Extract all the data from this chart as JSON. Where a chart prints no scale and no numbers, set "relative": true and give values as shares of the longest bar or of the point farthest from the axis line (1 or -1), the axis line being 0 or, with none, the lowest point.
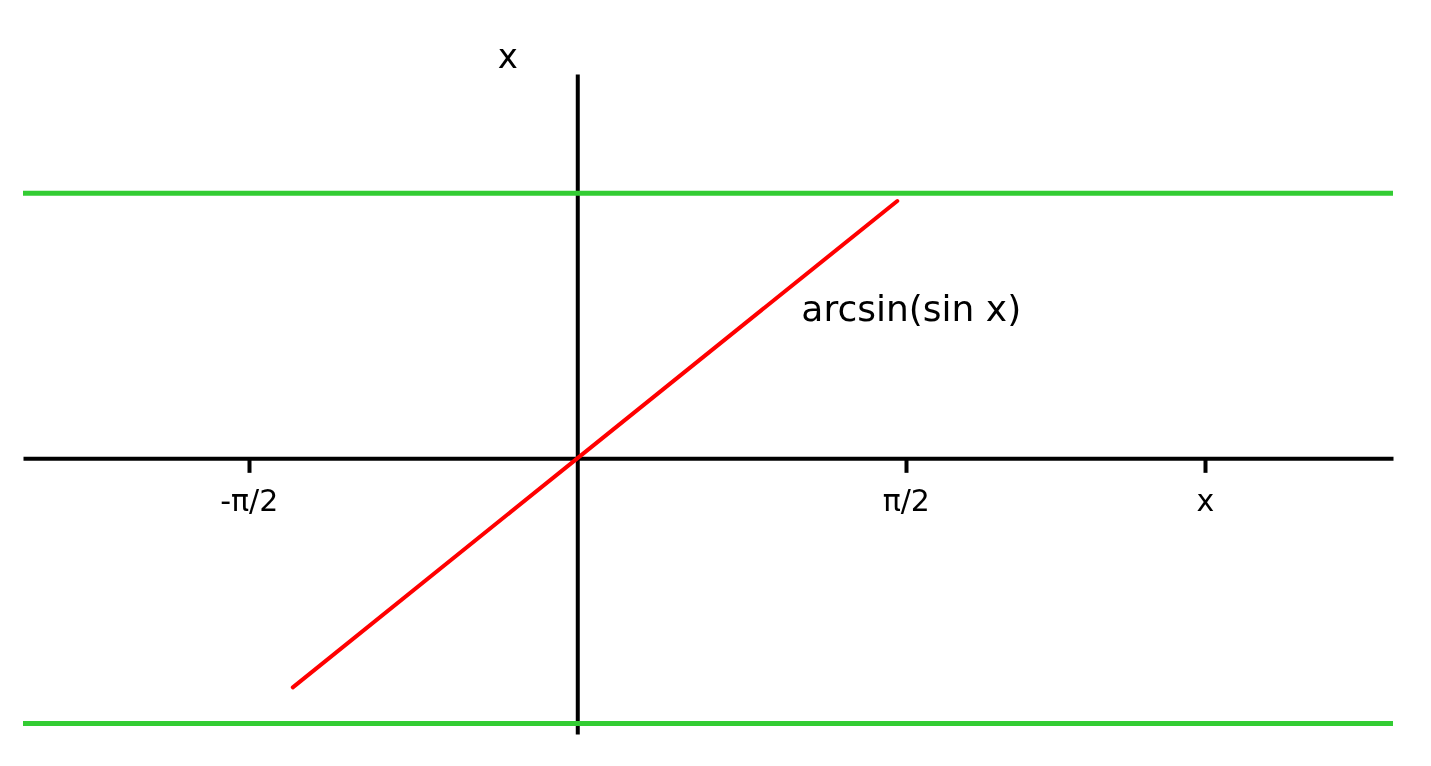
{
  "chart_data": {
    "type": "line",
    "ylabel": "x",
    "x": [
      -1.36,
      0,
      1.53
    ],
    "series": [
      {
        "color": "#ff0000",
        "values": [
          -0.89,
          0,
          1
        ]
      }
    ],
    "relative": true,
    "xlim": [
      -2.65,
      3.9
    ],
    "xticks": [
      {
        "value": -1.5708,
        "label": "-π/2"
      },
      {
        "value": 1.5708,
        "label": "π/2"
      },
      {
        "value": 3.0,
        "label": "x"
      }
    ],
    "ref_lines": [
      {
        "axis": "y",
        "value": 1.03,
        "color": "#33cc33"
      },
      {
        "axis": "y",
        "value": -1.03,
        "color": "#33cc33"
      }
    ],
    "annotations": [
      {
        "text": "arcsin(sin x)",
        "x": 0.88,
        "y": 0.575
      }
    ],
    "grid": false,
    "marker": "none",
    "line_style": "solid"
  }
}
